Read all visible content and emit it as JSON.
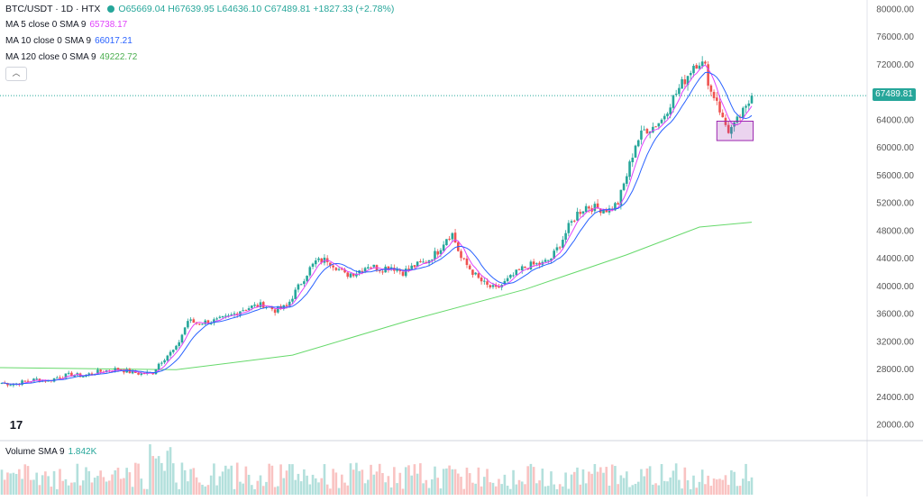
{
  "header": {
    "symbol": "BTC/USDT · 1D · HTX",
    "ohlc": "O65669.04 H67639.95 L64636.10 C67489.81 +1827.33 (+2.78%)"
  },
  "indicators": [
    {
      "label": "MA 5 close 0 SMA 9",
      "value": "65738.17",
      "color": "#e040fb"
    },
    {
      "label": "MA 10 close 0 SMA 9",
      "value": "66017.21",
      "color": "#2962ff"
    },
    {
      "label": "MA 120 close 0 SMA 9",
      "value": "49222.72",
      "color": "#4caf50"
    }
  ],
  "volume": {
    "label": "Volume SMA 9",
    "value": "1.842K"
  },
  "last_price_label": "67489.81",
  "colors": {
    "up": "#26a69a",
    "down": "#ef5350",
    "ma5": "#e040fb",
    "ma10": "#2962ff",
    "ma120": "#66d96b"
  },
  "chart_data": {
    "type": "candlestick",
    "y_axis_ticks": [
      "80000.00",
      "76000.00",
      "72000.00",
      "68000.00",
      "64000.00",
      "60000.00",
      "56000.00",
      "52000.00",
      "48000.00",
      "44000.00",
      "40000.00",
      "36000.00",
      "32000.00",
      "28000.00",
      "24000.00",
      "20000.00"
    ],
    "ylim": [
      20000,
      80000
    ],
    "last_close": 67489.81,
    "close_path": [
      [
        0,
        26000
      ],
      [
        4,
        25800
      ],
      [
        8,
        26200
      ],
      [
        12,
        26500
      ],
      [
        16,
        26300
      ],
      [
        20,
        26900
      ],
      [
        24,
        27200
      ],
      [
        28,
        27000
      ],
      [
        32,
        27500
      ],
      [
        36,
        27800
      ],
      [
        40,
        28000
      ],
      [
        44,
        27600
      ],
      [
        48,
        27300
      ],
      [
        52,
        27500
      ],
      [
        54,
        28800
      ],
      [
        57,
        30000
      ],
      [
        60,
        31000
      ],
      [
        62,
        33000
      ],
      [
        64,
        35000
      ],
      [
        67,
        34600
      ],
      [
        70,
        34800
      ],
      [
        74,
        35000
      ],
      [
        78,
        35500
      ],
      [
        82,
        36500
      ],
      [
        86,
        37000
      ],
      [
        90,
        37300
      ],
      [
        94,
        36500
      ],
      [
        98,
        37000
      ],
      [
        100,
        38500
      ],
      [
        103,
        40500
      ],
      [
        106,
        42500
      ],
      [
        108,
        43500
      ],
      [
        112,
        43800
      ],
      [
        115,
        42800
      ],
      [
        118,
        41600
      ],
      [
        122,
        42000
      ],
      [
        126,
        43000
      ],
      [
        130,
        42500
      ],
      [
        134,
        42800
      ],
      [
        138,
        42000
      ],
      [
        142,
        42900
      ],
      [
        146,
        43500
      ],
      [
        150,
        45000
      ],
      [
        153,
        47000
      ],
      [
        155,
        47500
      ],
      [
        158,
        44000
      ],
      [
        161,
        42500
      ],
      [
        164,
        41000
      ],
      [
        167,
        40000
      ],
      [
        170,
        39500
      ],
      [
        173,
        40500
      ],
      [
        176,
        41500
      ],
      [
        179,
        42500
      ],
      [
        182,
        43000
      ],
      [
        186,
        43200
      ],
      [
        189,
        44000
      ],
      [
        192,
        46000
      ],
      [
        195,
        48500
      ],
      [
        198,
        50500
      ],
      [
        201,
        51500
      ],
      [
        205,
        51200
      ],
      [
        209,
        51000
      ],
      [
        212,
        52000
      ],
      [
        215,
        56000
      ],
      [
        218,
        60500
      ],
      [
        221,
        62500
      ],
      [
        224,
        63000
      ],
      [
        227,
        64000
      ],
      [
        230,
        66500
      ],
      [
        233,
        68500
      ],
      [
        236,
        70500
      ],
      [
        238,
        72000
      ],
      [
        240,
        72500
      ],
      [
        242,
        71500
      ],
      [
        244,
        68000
      ],
      [
        246,
        67000
      ],
      [
        248,
        64000
      ],
      [
        250,
        62500
      ],
      [
        252,
        63000
      ],
      [
        254,
        64500
      ],
      [
        256,
        65500
      ],
      [
        258,
        67490
      ]
    ],
    "candle_count": 259,
    "ma120_path": [
      [
        0,
        28200
      ],
      [
        60,
        27900
      ],
      [
        100,
        30000
      ],
      [
        140,
        35000
      ],
      [
        180,
        39500
      ],
      [
        215,
        44500
      ],
      [
        240,
        48500
      ],
      [
        258,
        49200
      ]
    ],
    "highlight_box": {
      "y_top": 63800,
      "y_bottom": 61000,
      "x_start": 246,
      "x_end": 256
    }
  }
}
